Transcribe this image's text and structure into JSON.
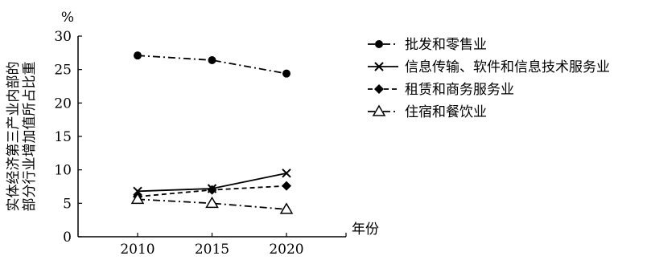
{
  "chart_data": {
    "type": "line",
    "title": "",
    "xlabel": "年份",
    "ylabel": "实体经济第三产业内部的部分行业增加值所占比重",
    "ylabel_lines": [
      "实体经济第三产业内部的",
      "部分行业增加值所占比重"
    ],
    "yunit": "%",
    "categories": [
      "2010",
      "2015",
      "2020"
    ],
    "x": [
      2010,
      2015,
      2020
    ],
    "xlim": [
      2006,
      2024
    ],
    "ylim": [
      0,
      30
    ],
    "yticks": [
      "0",
      "5",
      "10",
      "15",
      "20",
      "25",
      "30"
    ],
    "grid": false,
    "legend_position": "right",
    "series": [
      {
        "name": "批发和零售业",
        "values": [
          27.1,
          26.4,
          24.4
        ],
        "marker": "circle",
        "dash": "dashdot"
      },
      {
        "name": "信息传输、软件和信息技术服务业",
        "values": [
          6.8,
          7.2,
          9.5
        ],
        "marker": "x",
        "dash": "solid"
      },
      {
        "name": "租赁和商务服务业",
        "values": [
          6.0,
          7.0,
          7.6
        ],
        "marker": "diamond",
        "dash": "dashed"
      },
      {
        "name": "住宿和餐饮业",
        "values": [
          5.6,
          5.0,
          4.1
        ],
        "marker": "triangle",
        "dash": "dashdot"
      }
    ]
  }
}
